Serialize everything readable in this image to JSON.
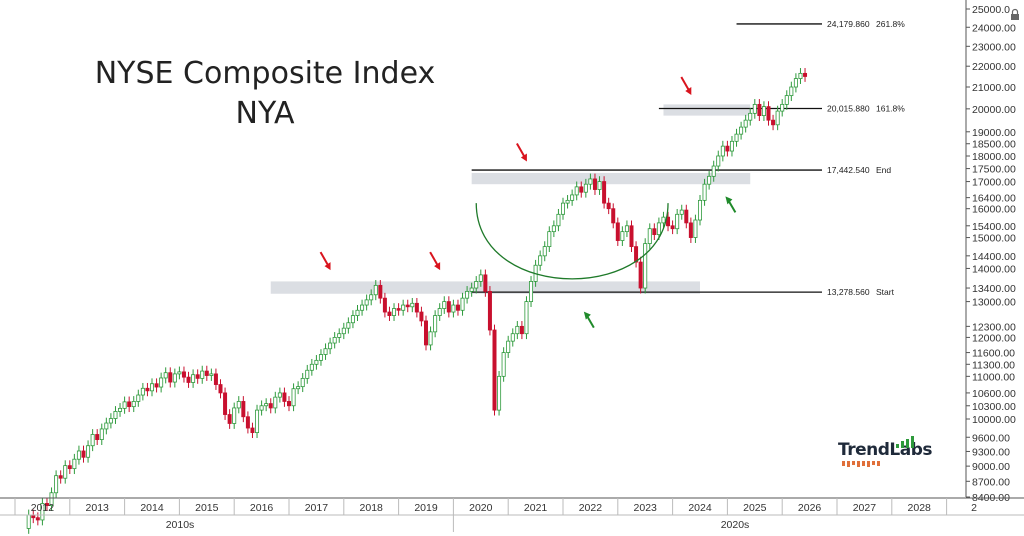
{
  "title_line1": "NYSE Composite Index",
  "title_line2": "NYA",
  "brand": {
    "name": "TrendLabs"
  },
  "colors": {
    "up": "#2e9a3c",
    "down": "#c8102e",
    "zone": "#cfd3da",
    "arc": "#1f7a2a",
    "axis": "#555555"
  },
  "chart_data": {
    "type": "candlestick",
    "interval": "monthly",
    "scale": "log",
    "ylim": [
      8400,
      25000
    ],
    "y_ticks": [
      "25000.0",
      "24000.00",
      "23000.00",
      "22000.00",
      "21000.00",
      "20000.00",
      "19000.00",
      "18500.00",
      "18000.00",
      "17500.00",
      "17000.00",
      "16400.00",
      "16000.00",
      "15400.00",
      "15000.00",
      "14400.00",
      "14000.00",
      "13400.00",
      "13000.00",
      "12300.00",
      "12000.00",
      "11600.00",
      "11300.00",
      "11000.00",
      "10600.00",
      "10300.00",
      "10000.00",
      "9600.00",
      "9300.00",
      "9000.00",
      "8700.00",
      "8400.00"
    ],
    "x_ticks": [
      "2012",
      "2013",
      "2014",
      "2015",
      "2016",
      "2017",
      "2018",
      "2019",
      "2020",
      "2021",
      "2022",
      "2023",
      "2024",
      "2025",
      "2026",
      "2027",
      "2028",
      "2"
    ],
    "x_groups": [
      "2010s",
      "2020s"
    ],
    "levels": [
      {
        "value": "24,179.860",
        "label": "261.8%"
      },
      {
        "value": "20,015.880",
        "label": "161.8%"
      },
      {
        "value": "17,442.540",
        "label": "End"
      },
      {
        "value": "13,278.560",
        "label": "Start"
      }
    ],
    "resistance_zones": [
      {
        "from": "2016-09",
        "to": "2024-07",
        "y_low": 13230,
        "y_high": 13600
      },
      {
        "from": "2020-05",
        "to": "2025-06",
        "y_low": 16900,
        "y_high": 17330
      },
      {
        "from": "2023-11",
        "to": "2025-06",
        "y_low": 19700,
        "y_high": 20200
      }
    ],
    "annotations": [
      {
        "type": "arrow-down",
        "color": "red",
        "date": "2017-09",
        "value": 14200
      },
      {
        "type": "arrow-down",
        "color": "red",
        "date": "2019-09",
        "value": 14200
      },
      {
        "type": "arrow-down",
        "color": "red",
        "date": "2021-04",
        "value": 18100
      },
      {
        "type": "arrow-down",
        "color": "red",
        "date": "2024-04",
        "value": 21000
      },
      {
        "type": "arrow-up",
        "color": "green",
        "date": "2022-06",
        "value": 12600
      },
      {
        "type": "arrow-up",
        "color": "green",
        "date": "2025-01",
        "value": 16300
      },
      {
        "type": "rounded-bottom-arc",
        "color": "green",
        "from": "2020-06",
        "to": "2023-12",
        "value": 13278.56
      }
    ],
    "candles": [
      [
        7830,
        8070
      ],
      [
        8070,
        8020
      ],
      [
        8020,
        7980
      ],
      [
        7980,
        8280
      ],
      [
        8280,
        8240
      ],
      [
        8240,
        8480
      ],
      [
        8480,
        8810
      ],
      [
        8810,
        8760
      ],
      [
        8760,
        9010
      ],
      [
        9010,
        8950
      ],
      [
        8950,
        9140
      ],
      [
        9140,
        9310
      ],
      [
        9310,
        9180
      ],
      [
        9180,
        9420
      ],
      [
        9420,
        9660
      ],
      [
        9660,
        9550
      ],
      [
        9550,
        9780
      ],
      [
        9780,
        9910
      ],
      [
        9910,
        10010
      ],
      [
        10010,
        10170
      ],
      [
        10170,
        10240
      ],
      [
        10240,
        10390
      ],
      [
        10390,
        10280
      ],
      [
        10280,
        10400
      ],
      [
        10400,
        10550
      ],
      [
        10550,
        10710
      ],
      [
        10710,
        10650
      ],
      [
        10650,
        10820
      ],
      [
        10820,
        10740
      ],
      [
        10740,
        10960
      ],
      [
        10960,
        11090
      ],
      [
        11090,
        10860
      ],
      [
        10860,
        11060
      ],
      [
        11060,
        11110
      ],
      [
        11110,
        10980
      ],
      [
        10980,
        10850
      ],
      [
        10850,
        11040
      ],
      [
        11040,
        10950
      ],
      [
        10950,
        11130
      ],
      [
        11130,
        11020
      ],
      [
        11020,
        11060
      ],
      [
        11060,
        10800
      ],
      [
        10800,
        10600
      ],
      [
        10600,
        10100
      ],
      [
        10100,
        9900
      ],
      [
        9900,
        10250
      ],
      [
        10250,
        10400
      ],
      [
        10400,
        10050
      ],
      [
        10050,
        9800
      ],
      [
        9800,
        9700
      ],
      [
        9700,
        10200
      ],
      [
        10200,
        10300
      ],
      [
        10300,
        10350
      ],
      [
        10350,
        10250
      ],
      [
        10250,
        10500
      ],
      [
        10500,
        10600
      ],
      [
        10600,
        10400
      ],
      [
        10400,
        10300
      ],
      [
        10300,
        10700
      ],
      [
        10700,
        10750
      ],
      [
        10750,
        10950
      ],
      [
        10950,
        11150
      ],
      [
        11150,
        11300
      ],
      [
        11300,
        11400
      ],
      [
        11400,
        11550
      ],
      [
        11550,
        11700
      ],
      [
        11700,
        11850
      ],
      [
        11850,
        12000
      ],
      [
        12000,
        12100
      ],
      [
        12100,
        12250
      ],
      [
        12250,
        12400
      ],
      [
        12400,
        12600
      ],
      [
        12600,
        12750
      ],
      [
        12750,
        12900
      ],
      [
        12900,
        13050
      ],
      [
        13050,
        13200
      ],
      [
        13200,
        13480
      ],
      [
        13480,
        13100
      ],
      [
        13100,
        12700
      ],
      [
        12700,
        12600
      ],
      [
        12600,
        12800
      ],
      [
        12800,
        12750
      ],
      [
        12750,
        12900
      ],
      [
        12900,
        12850
      ],
      [
        12850,
        12950
      ],
      [
        12950,
        12700
      ],
      [
        12700,
        12450
      ],
      [
        12450,
        11800
      ],
      [
        11800,
        12150
      ],
      [
        12150,
        12600
      ],
      [
        12600,
        12800
      ],
      [
        12800,
        13000
      ],
      [
        13000,
        12700
      ],
      [
        12700,
        12900
      ],
      [
        12900,
        12750
      ],
      [
        12750,
        13100
      ],
      [
        13100,
        13300
      ],
      [
        13300,
        13400
      ],
      [
        13400,
        13600
      ],
      [
        13600,
        13800
      ],
      [
        13800,
        13300
      ],
      [
        13300,
        12200
      ],
      [
        12200,
        10200
      ],
      [
        10200,
        11000
      ],
      [
        11000,
        11600
      ],
      [
        11600,
        11900
      ],
      [
        11900,
        12100
      ],
      [
        12100,
        12300
      ],
      [
        12300,
        12100
      ],
      [
        12100,
        13000
      ],
      [
        13000,
        13600
      ],
      [
        13600,
        14100
      ],
      [
        14100,
        14400
      ],
      [
        14400,
        14700
      ],
      [
        14700,
        15200
      ],
      [
        15200,
        15400
      ],
      [
        15400,
        15800
      ],
      [
        15800,
        16200
      ],
      [
        16200,
        16300
      ],
      [
        16300,
        16500
      ],
      [
        16500,
        16800
      ],
      [
        16800,
        16600
      ],
      [
        16600,
        16900
      ],
      [
        16900,
        17100
      ],
      [
        17100,
        16700
      ],
      [
        16700,
        17000
      ],
      [
        17000,
        16200
      ],
      [
        16200,
        16000
      ],
      [
        16000,
        15500
      ],
      [
        15500,
        14900
      ],
      [
        14900,
        15200
      ],
      [
        15200,
        15400
      ],
      [
        15400,
        14700
      ],
      [
        14700,
        14200
      ],
      [
        14200,
        13400
      ],
      [
        13400,
        14800
      ],
      [
        14800,
        15300
      ],
      [
        15300,
        15100
      ],
      [
        15100,
        15500
      ],
      [
        15500,
        15700
      ],
      [
        15700,
        15400
      ],
      [
        15400,
        15300
      ],
      [
        15300,
        15800
      ],
      [
        15800,
        15950
      ],
      [
        15950,
        15500
      ],
      [
        15500,
        15000
      ],
      [
        15000,
        15600
      ],
      [
        15600,
        16300
      ],
      [
        16300,
        16900
      ],
      [
        16900,
        17200
      ],
      [
        17200,
        17600
      ],
      [
        17600,
        18000
      ],
      [
        18000,
        18400
      ],
      [
        18400,
        18200
      ],
      [
        18200,
        18600
      ],
      [
        18600,
        18900
      ],
      [
        18900,
        19200
      ],
      [
        19200,
        19500
      ],
      [
        19500,
        19800
      ],
      [
        19800,
        20200
      ],
      [
        20200,
        19700
      ],
      [
        19700,
        20100
      ],
      [
        20100,
        19500
      ],
      [
        19500,
        19300
      ],
      [
        19300,
        19900
      ],
      [
        19900,
        20200
      ],
      [
        20200,
        20600
      ],
      [
        20600,
        21000
      ],
      [
        21000,
        21400
      ],
      [
        21400,
        21650
      ],
      [
        21650,
        21500
      ]
    ]
  }
}
